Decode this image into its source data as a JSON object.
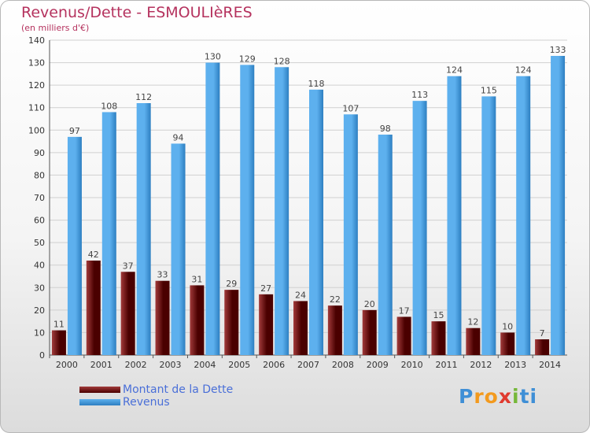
{
  "title": "Revenus/Dette - ESMOULIèRES",
  "subtitle": "(en milliers d'€)",
  "colors": {
    "dette_dark": "#4a0000",
    "dette_light": "#a23b3b",
    "revenus_dark": "#2d7fc1",
    "revenus_light": "#5db0ee",
    "grid": "#d0d0d0",
    "axis_text": "#333333",
    "value_text": "#444444"
  },
  "chart_data": {
    "type": "bar",
    "categories": [
      "2000",
      "2001",
      "2002",
      "2003",
      "2004",
      "2005",
      "2006",
      "2007",
      "2008",
      "2009",
      "2010",
      "2011",
      "2012",
      "2013",
      "2014"
    ],
    "series": [
      {
        "name": "Montant de la Dette",
        "values": [
          11,
          42,
          37,
          33,
          31,
          29,
          27,
          24,
          22,
          20,
          17,
          15,
          12,
          10,
          7
        ]
      },
      {
        "name": "Revenus",
        "values": [
          97,
          108,
          112,
          94,
          130,
          129,
          128,
          118,
          107,
          98,
          113,
          124,
          115,
          124,
          133
        ]
      }
    ],
    "ylim": [
      0,
      140
    ],
    "yticks": [
      0,
      10,
      20,
      30,
      40,
      50,
      60,
      70,
      80,
      90,
      100,
      110,
      120,
      130,
      140
    ],
    "grid": true,
    "legend": "bottom-left"
  },
  "legend": {
    "items": [
      {
        "label": "Montant de la Dette",
        "color": "#5a0a0a"
      },
      {
        "label": "Revenus",
        "color": "#4fa3e6"
      }
    ]
  },
  "logo": {
    "text": "Proxiti",
    "letters": [
      "P",
      "r",
      "o",
      "x",
      "i",
      "t",
      "i"
    ],
    "colors": [
      "#3f8fd6",
      "#f39a1e",
      "#f39a1e",
      "#e03a2f",
      "#76b83a",
      "#3f8fd6",
      "#3f8fd6"
    ]
  }
}
